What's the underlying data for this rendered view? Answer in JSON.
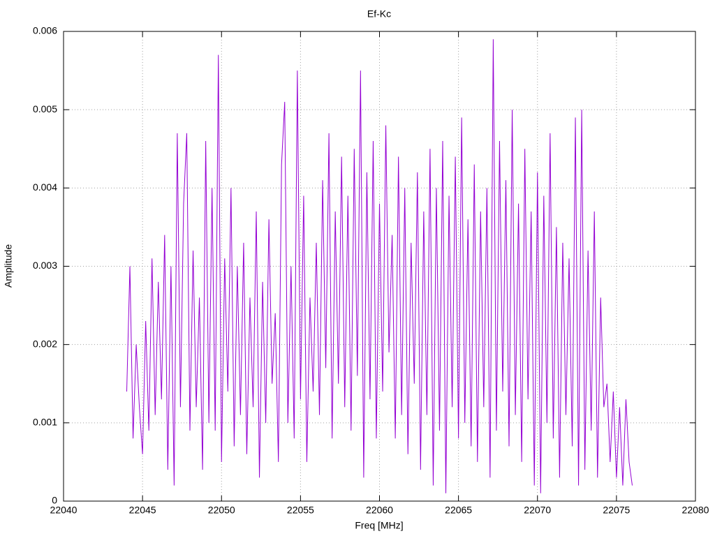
{
  "chart_data": {
    "type": "line",
    "title": "Ef-Kc",
    "x_label": "Freq [MHz]",
    "y_label": "Amplitude",
    "color": "#9400d3",
    "grid": true,
    "xlim": [
      22040,
      22080
    ],
    "xticks": [
      22040,
      22045,
      22050,
      22055,
      22060,
      22065,
      22070,
      22075,
      22080
    ],
    "ylim": [
      0,
      0.006
    ],
    "yticks": [
      0,
      0.001,
      0.002,
      0.003,
      0.004,
      0.005,
      0.006
    ],
    "x": [
      22044,
      22044.2,
      22044.4,
      22044.6,
      22044.8,
      22045,
      22045.2,
      22045.4,
      22045.6,
      22045.8,
      22046,
      22046.2,
      22046.4,
      22046.6,
      22046.8,
      22047,
      22047.2,
      22047.4,
      22047.6,
      22047.8,
      22048,
      22048.2,
      22048.4,
      22048.6,
      22048.8,
      22049,
      22049.2,
      22049.4,
      22049.6,
      22049.8,
      22050,
      22050.2,
      22050.4,
      22050.6,
      22050.8,
      22051,
      22051.2,
      22051.4,
      22051.6,
      22051.8,
      22052,
      22052.2,
      22052.4,
      22052.6,
      22052.8,
      22053,
      22053.2,
      22053.4,
      22053.6,
      22053.8,
      22054,
      22054.2,
      22054.4,
      22054.6,
      22054.8,
      22055,
      22055.2,
      22055.4,
      22055.6,
      22055.8,
      22056,
      22056.2,
      22056.4,
      22056.6,
      22056.8,
      22057,
      22057.2,
      22057.4,
      22057.6,
      22057.8,
      22058,
      22058.2,
      22058.4,
      22058.6,
      22058.8,
      22059,
      22059.2,
      22059.4,
      22059.6,
      22059.8,
      22060,
      22060.2,
      22060.4,
      22060.6,
      22060.8,
      22061,
      22061.2,
      22061.4,
      22061.6,
      22061.8,
      22062,
      22062.2,
      22062.4,
      22062.6,
      22062.8,
      22063,
      22063.2,
      22063.4,
      22063.6,
      22063.8,
      22064,
      22064.2,
      22064.4,
      22064.6,
      22064.8,
      22065,
      22065.2,
      22065.4,
      22065.6,
      22065.8,
      22066,
      22066.2,
      22066.4,
      22066.6,
      22066.8,
      22067,
      22067.2,
      22067.4,
      22067.6,
      22067.8,
      22068,
      22068.2,
      22068.4,
      22068.6,
      22068.8,
      22069,
      22069.2,
      22069.4,
      22069.6,
      22069.8,
      22070,
      22070.2,
      22070.4,
      22070.6,
      22070.8,
      22071,
      22071.2,
      22071.4,
      22071.6,
      22071.8,
      22072,
      22072.2,
      22072.4,
      22072.6,
      22072.8,
      22073,
      22073.2,
      22073.4,
      22073.6,
      22073.8,
      22074,
      22074.2,
      22074.4,
      22074.6,
      22074.8,
      22075,
      22075.2,
      22075.4,
      22075.6,
      22075.8,
      22076
    ],
    "values": [
      0.0014,
      0.003,
      0.0008,
      0.002,
      0.0012,
      0.0006,
      0.0023,
      0.0009,
      0.0031,
      0.0011,
      0.0028,
      0.0013,
      0.0034,
      0.0004,
      0.003,
      0.0002,
      0.0047,
      0.0012,
      0.0038,
      0.0047,
      0.0009,
      0.0032,
      0.0012,
      0.0026,
      0.0004,
      0.0046,
      0.001,
      0.004,
      0.0009,
      0.0057,
      0.0005,
      0.0031,
      0.0014,
      0.004,
      0.0007,
      0.003,
      0.0011,
      0.0033,
      0.0006,
      0.0026,
      0.0012,
      0.0037,
      0.0003,
      0.0028,
      0.001,
      0.0036,
      0.0015,
      0.0024,
      0.0005,
      0.0043,
      0.0051,
      0.001,
      0.003,
      0.0008,
      0.0055,
      0.0013,
      0.0039,
      0.0005,
      0.0026,
      0.0014,
      0.0033,
      0.0011,
      0.0041,
      0.0017,
      0.0047,
      0.0008,
      0.0037,
      0.0015,
      0.0044,
      0.0012,
      0.0039,
      0.0009,
      0.0045,
      0.0016,
      0.0055,
      0.0003,
      0.0042,
      0.0013,
      0.0046,
      0.0008,
      0.0038,
      0.0014,
      0.0048,
      0.0019,
      0.0034,
      0.0008,
      0.0044,
      0.0011,
      0.004,
      0.0006,
      0.0033,
      0.0015,
      0.0042,
      0.0004,
      0.0037,
      0.0011,
      0.0045,
      0.0002,
      0.004,
      0.0009,
      0.0046,
      0.0001,
      0.0039,
      0.0012,
      0.0044,
      0.0008,
      0.0049,
      0.001,
      0.0036,
      0.0007,
      0.0043,
      0.0005,
      0.0037,
      0.0012,
      0.004,
      0.0003,
      0.0059,
      0.0009,
      0.0046,
      0.0014,
      0.0041,
      0.0007,
      0.005,
      0.0011,
      0.0038,
      0.0005,
      0.0045,
      0.0013,
      0.0037,
      0.0002,
      0.0042,
      0.0001,
      0.0039,
      0.001,
      0.0047,
      0.0008,
      0.0035,
      0.0003,
      0.0033,
      0.0011,
      0.0031,
      0.0007,
      0.0049,
      0.0002,
      0.005,
      0.0004,
      0.0032,
      0.0009,
      0.0037,
      0.0003,
      0.0026,
      0.0012,
      0.0015,
      0.0005,
      0.0014,
      0.0003,
      0.0012,
      0.0002,
      0.0013,
      0.0005,
      0.0002
    ]
  }
}
